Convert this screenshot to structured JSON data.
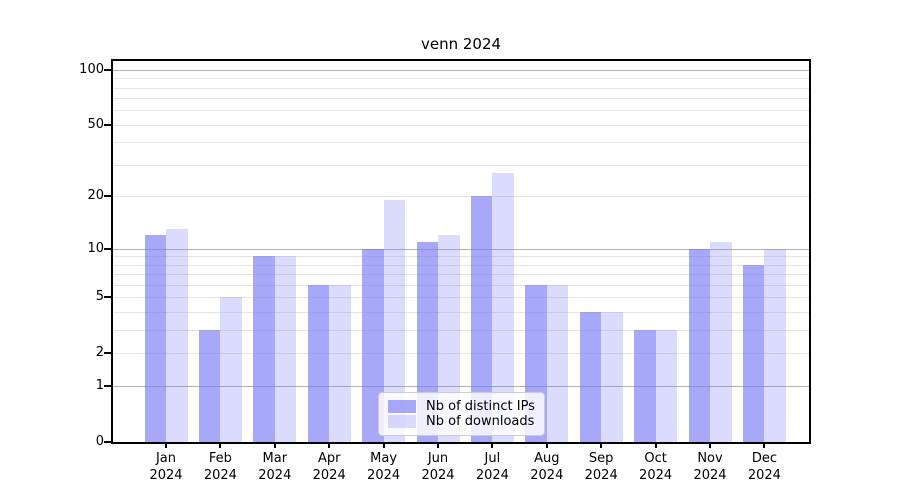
{
  "chart_data": {
    "type": "bar",
    "title": "venn 2024",
    "categories": [
      "Jan",
      "Feb",
      "Mar",
      "Apr",
      "May",
      "Jun",
      "Jul",
      "Aug",
      "Sep",
      "Oct",
      "Nov",
      "Dec"
    ],
    "category_year": "2024",
    "series": [
      {
        "name": "Nb of distinct IPs",
        "color": "rgba(122,122,246,0.65)",
        "color_hex_on_white": "#a8a8f9",
        "values": [
          12,
          3,
          9,
          6,
          10,
          11,
          20,
          6,
          4,
          3,
          10,
          8
        ]
      },
      {
        "name": "Nb of downloads",
        "color": "rgba(122,122,246,0.27)",
        "color_hex_on_white": "#dbdbfa",
        "values": [
          13,
          5,
          9,
          6,
          19,
          12,
          27,
          6,
          4,
          3,
          11,
          10
        ]
      }
    ],
    "yscale": "log1p",
    "ylim": [
      0,
      113
    ],
    "y_tick_values": [
      0,
      1,
      2,
      5,
      10,
      20,
      50,
      100
    ],
    "y_tick_labels": [
      "0",
      "1",
      "2",
      "5",
      "10",
      "20",
      "50",
      "100"
    ],
    "y_gridlines_dark": [
      1,
      10,
      100
    ],
    "y_gridlines_light": [
      2,
      3,
      4,
      5,
      6,
      7,
      8,
      9,
      20,
      30,
      40,
      50,
      60,
      70,
      80,
      90
    ],
    "grid": true,
    "legend_position": "lower center",
    "colors": {
      "grid_major": "#b0b0b0",
      "grid_minor": "#e4e4e4",
      "spine": "#000000",
      "background": "#ffffff"
    }
  }
}
